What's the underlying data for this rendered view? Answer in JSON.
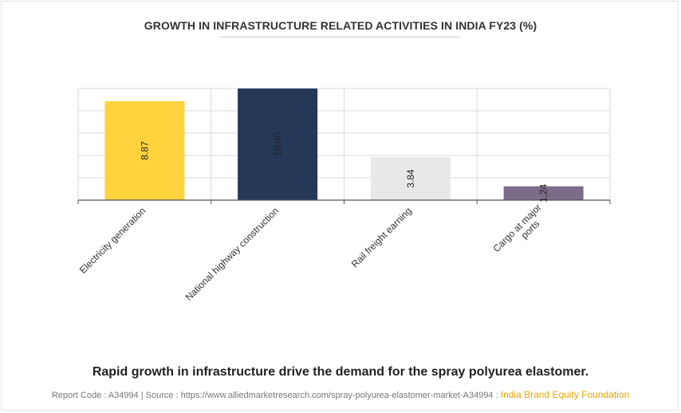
{
  "chart_data": {
    "type": "bar",
    "title": "GROWTH IN INFRASTRUCTURE RELATED ACTIVITIES IN INDIA FY23 (%)",
    "categories": [
      "Electricity generation",
      "National highway construction",
      "Rail freight earning",
      "Cargo at major ports"
    ],
    "values": [
      8.87,
      10.0,
      3.84,
      1.24
    ],
    "value_labels": [
      "8.87",
      "10.00",
      "3.84",
      "1.24"
    ],
    "colors": [
      "#FFD33D",
      "#253858",
      "#E8E8E8",
      "#7B6C8A"
    ],
    "xlabel": "",
    "ylabel": "",
    "ylim": [
      0,
      10
    ],
    "grid": true,
    "legend": "none"
  },
  "caption": "Rapid growth in infrastructure drive the demand for the spray polyurea elastomer.",
  "footer": {
    "report_code": "Report Code : A34994",
    "separator": "|",
    "source": "Source : https://www.alliedmarketresearch.com/spray-polyurea-elastomer-market-A34994 :",
    "source_name": "India Brand Equity Foundation"
  }
}
